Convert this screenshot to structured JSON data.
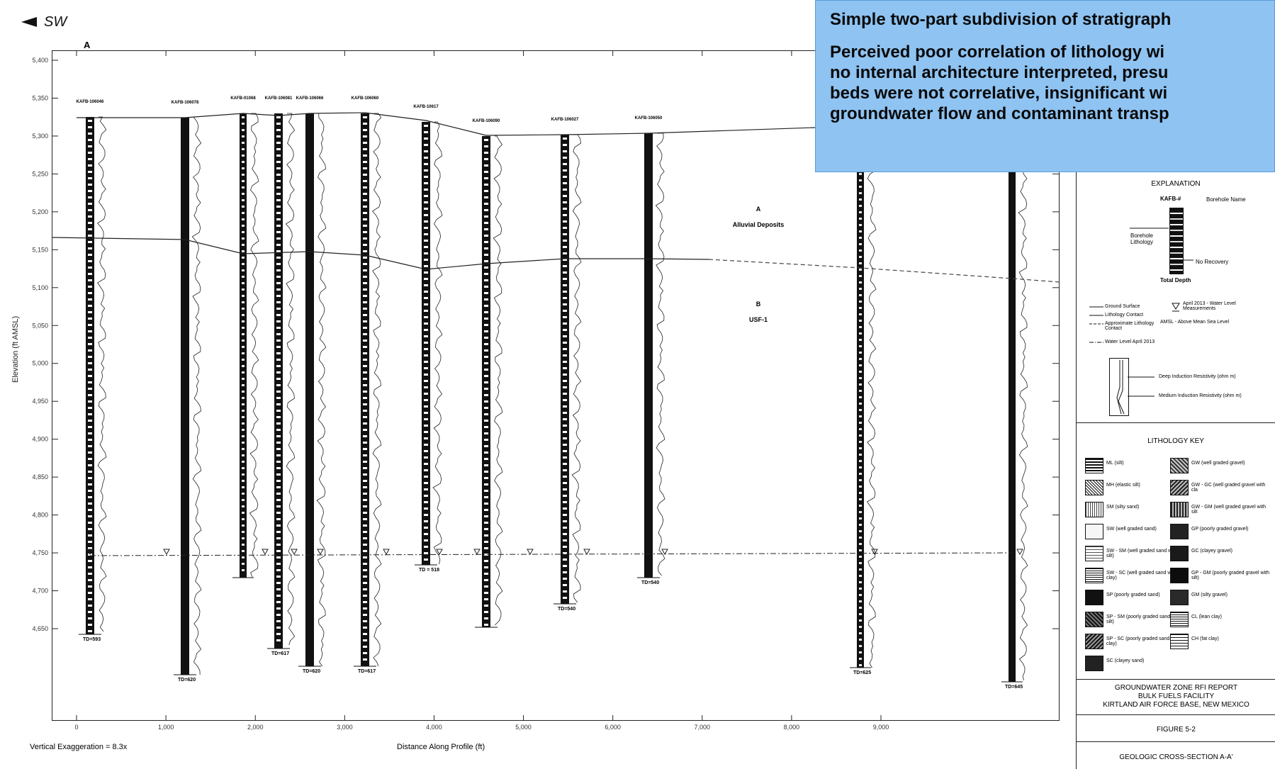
{
  "direction_label": "SW",
  "section_label": "A",
  "y_axis": {
    "label": "Elevation (ft AMSL)",
    "ticks": [
      "5,400",
      "5,350",
      "5,300",
      "5,250",
      "5,200",
      "5,150",
      "5,100",
      "5,050",
      "5,000",
      "4,950",
      "4,900",
      "4,850",
      "4,800",
      "4,750",
      "4,700",
      "4,650"
    ]
  },
  "x_axis": {
    "label": "Distance Along Profile (ft)",
    "ticks": [
      "0",
      "1,000",
      "2,000",
      "3,000",
      "4,000",
      "5,000",
      "6,000",
      "7,000",
      "8,000",
      "9,000"
    ]
  },
  "vertical_exaggeration": "Vertical Exaggeration = 8.3x",
  "zones": {
    "a_letter": "A",
    "a_name": "Alluvial Deposits",
    "b_letter": "B",
    "b_name": "USF-1"
  },
  "boreholes": [
    {
      "name": "KAFB-106046",
      "td": "TD=593"
    },
    {
      "name": "KAFB-106078",
      "td": "TD=620"
    },
    {
      "name": "KAFB-01068",
      "td": ""
    },
    {
      "name": "KAFB-106081",
      "td": "TD=617"
    },
    {
      "name": "KAFB-106066",
      "td": "TD=620"
    },
    {
      "name": "KAFB-106060",
      "td": "TD=617"
    },
    {
      "name": "KAFB-10617",
      "td": "TD = 518"
    },
    {
      "name": "KAFB-106090",
      "td": ""
    },
    {
      "name": "KAFB-106027",
      "td": "TD=540"
    },
    {
      "name": "KAFB-106050",
      "td": "TD=540"
    },
    {
      "name": "",
      "td": "TD=625"
    },
    {
      "name": "",
      "td": "TD=645"
    }
  ],
  "callout": {
    "line1": "Simple two-part subdivision of stratigraph",
    "line2a": "Perceived poor correlation of lithology wi",
    "line2b": "no internal architecture interpreted, presu",
    "line2c": "beds were not correlative, insignificant wi",
    "line2d": "groundwater flow and contaminant transp"
  },
  "explanation": {
    "title": "EXPLANATION",
    "borehole_id": "KAFB-#",
    "borehole_name": "Borehole Name",
    "borehole_lithology": "Borehole Lithology",
    "no_recovery": "No Recovery",
    "total_depth": "Total Depth",
    "ground_surface": "Ground Surface",
    "lithology_contact": "Lithology Contact",
    "approx_contact": "Approximate Lithology Contact",
    "water_level": "Water Level April 2013",
    "april_water": "April 2013 - Water Level Measurements",
    "amsl": "AMSL - Above Mean Sea Level",
    "deep_res": "Deep Induction Resistivity (ohm m)",
    "medium_res": "Medium Induction Resistivity (ohm m)"
  },
  "lithology_key": {
    "title": "LITHOLOGY KEY",
    "left": [
      "ML (silt)",
      "MH (elastic silt)",
      "SM (silty sand)",
      "SW (well graded sand)",
      "SW - SM (well graded sand with silt)",
      "SW - SC (well graded sand with clay)",
      "SP (poorly graded sand)",
      "SP - SM (poorly graded sand with silt)",
      "SP - SC (poorly graded sand with clay)",
      "SC (clayey sand)"
    ],
    "right": [
      "GW (well graded gravel)",
      "GW - GC (well graded gravel with cla",
      "GW - GM (well graded gravel with silt",
      "GP (poorly graded gravel)",
      "GC (clayey gravel)",
      "GP - GM (poorly graded gravel with silt)",
      "GM (silty gravel)",
      "CL (lean clay)",
      "CH (fat clay)"
    ]
  },
  "title_block": {
    "report": "GROUNDWATER ZONE RFI REPORT",
    "facility": "BULK FUELS FACILITY",
    "base": "KIRTLAND AIR FORCE BASE, NEW MEXICO",
    "figure": "FIGURE 5-2",
    "caption": "GEOLOGIC CROSS-SECTION A-A'"
  }
}
